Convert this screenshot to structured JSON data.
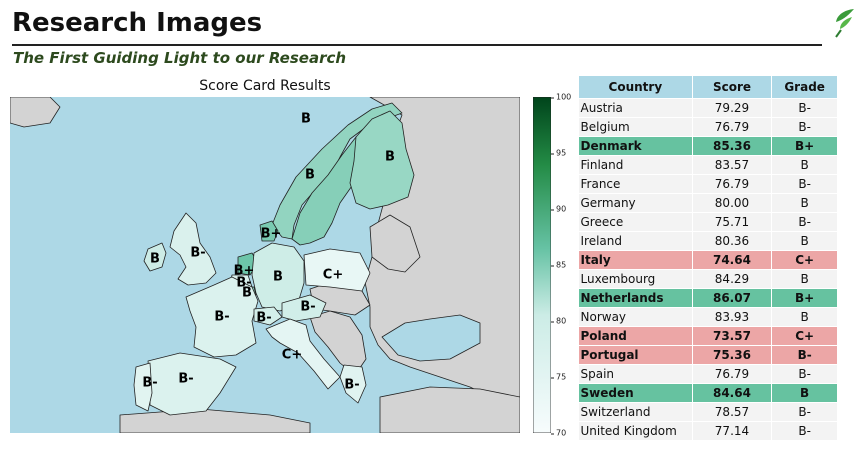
{
  "header": {
    "title": "Research Images",
    "subtitle": "The First Guiding Light to our Research"
  },
  "map": {
    "title": "Score Card Results",
    "colors": {
      "sea": "#add8e6",
      "non_scored_land": "#d3d3d3",
      "border": "#222222"
    },
    "labels": [
      {
        "country": "Sweden",
        "grade": "B"
      },
      {
        "country": "Norway",
        "grade": "B"
      },
      {
        "country": "Finland",
        "grade": "B"
      },
      {
        "country": "Denmark",
        "grade": "B+"
      },
      {
        "country": "Ireland",
        "grade": "B"
      },
      {
        "country": "United Kingdom",
        "grade": "B-"
      },
      {
        "country": "Netherlands",
        "grade": "B+"
      },
      {
        "country": "Belgium",
        "grade": "B-"
      },
      {
        "country": "Luxembourg",
        "grade": "B"
      },
      {
        "country": "Germany",
        "grade": "B"
      },
      {
        "country": "Poland",
        "grade": "C+"
      },
      {
        "country": "France",
        "grade": "B-"
      },
      {
        "country": "Switzerland",
        "grade": "B-"
      },
      {
        "country": "Austria",
        "grade": "B-"
      },
      {
        "country": "Italy",
        "grade": "C+"
      },
      {
        "country": "Spain",
        "grade": "B-"
      },
      {
        "country": "Portugal",
        "grade": "B-"
      },
      {
        "country": "Greece",
        "grade": "B-"
      }
    ]
  },
  "colorbar": {
    "min": 70,
    "max": 100,
    "ticks": [
      100,
      95,
      90,
      85,
      80,
      75,
      70
    ],
    "color_low": "#f7fcfd",
    "color_mid": "#66c2a4",
    "color_high": "#00441b"
  },
  "table": {
    "headers": {
      "country": "Country",
      "score": "Score",
      "grade": "Grade"
    },
    "highlight_colors": {
      "high": "#66c2a0",
      "low": "#eca6a6",
      "header": "#add8e6"
    },
    "rows": [
      {
        "country": "Austria",
        "score": "79.29",
        "grade": "B-",
        "highlight": "none"
      },
      {
        "country": "Belgium",
        "score": "76.79",
        "grade": "B-",
        "highlight": "none"
      },
      {
        "country": "Denmark",
        "score": "85.36",
        "grade": "B+",
        "highlight": "high"
      },
      {
        "country": "Finland",
        "score": "83.57",
        "grade": "B",
        "highlight": "none"
      },
      {
        "country": "France",
        "score": "76.79",
        "grade": "B-",
        "highlight": "none"
      },
      {
        "country": "Germany",
        "score": "80.00",
        "grade": "B",
        "highlight": "none"
      },
      {
        "country": "Greece",
        "score": "75.71",
        "grade": "B-",
        "highlight": "none"
      },
      {
        "country": "Ireland",
        "score": "80.36",
        "grade": "B",
        "highlight": "none"
      },
      {
        "country": "Italy",
        "score": "74.64",
        "grade": "C+",
        "highlight": "low"
      },
      {
        "country": "Luxembourg",
        "score": "84.29",
        "grade": "B",
        "highlight": "none"
      },
      {
        "country": "Netherlands",
        "score": "86.07",
        "grade": "B+",
        "highlight": "high"
      },
      {
        "country": "Norway",
        "score": "83.93",
        "grade": "B",
        "highlight": "none"
      },
      {
        "country": "Poland",
        "score": "73.57",
        "grade": "C+",
        "highlight": "low"
      },
      {
        "country": "Portugal",
        "score": "75.36",
        "grade": "B-",
        "highlight": "low"
      },
      {
        "country": "Spain",
        "score": "76.79",
        "grade": "B-",
        "highlight": "none"
      },
      {
        "country": "Sweden",
        "score": "84.64",
        "grade": "B",
        "highlight": "high"
      },
      {
        "country": "Switzerland",
        "score": "78.57",
        "grade": "B-",
        "highlight": "none"
      },
      {
        "country": "United Kingdom",
        "score": "77.14",
        "grade": "B-",
        "highlight": "none"
      }
    ]
  }
}
